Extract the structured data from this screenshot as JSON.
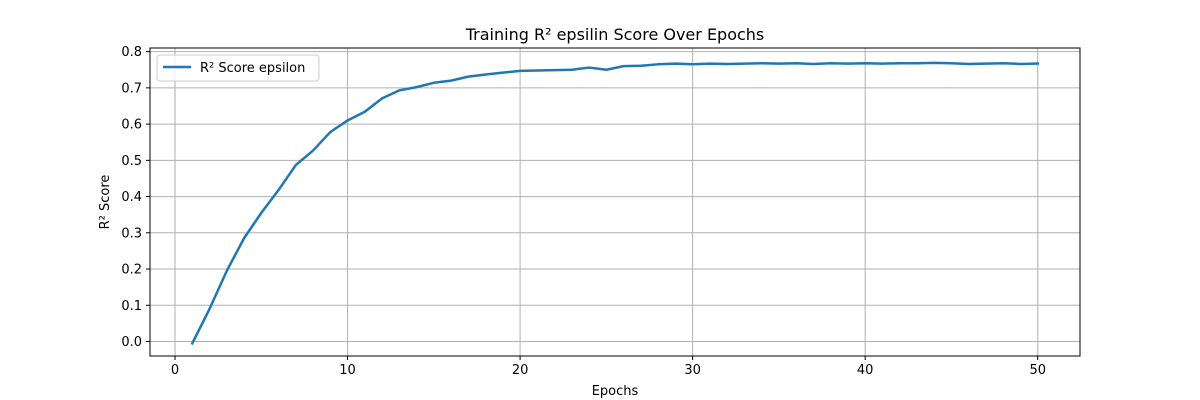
{
  "chart_data": {
    "type": "line",
    "title": "Training R² epsilin Score Over Epochs",
    "xlabel": "Epochs",
    "ylabel": "R² Score",
    "xlim": [
      -1.45,
      52.45
    ],
    "ylim": [
      -0.04,
      0.81
    ],
    "xticks": [
      0,
      10,
      20,
      30,
      40,
      50
    ],
    "yticks": [
      0.0,
      0.1,
      0.2,
      0.3,
      0.4,
      0.5,
      0.6,
      0.7,
      0.8
    ],
    "xtick_labels": [
      "0",
      "10",
      "20",
      "30",
      "40",
      "50"
    ],
    "ytick_labels": [
      "0.0",
      "0.1",
      "0.2",
      "0.3",
      "0.4",
      "0.5",
      "0.6",
      "0.7",
      "0.8"
    ],
    "grid": true,
    "legend_position": "top-left",
    "series": [
      {
        "name": "R² Score epsilon",
        "color": "#1f77b4",
        "x": [
          1,
          2,
          3,
          4,
          5,
          6,
          7,
          8,
          9,
          10,
          11,
          12,
          13,
          14,
          15,
          16,
          17,
          18,
          19,
          20,
          21,
          22,
          23,
          24,
          25,
          26,
          27,
          28,
          29,
          30,
          31,
          32,
          33,
          34,
          35,
          36,
          37,
          38,
          39,
          40,
          41,
          42,
          43,
          44,
          45,
          46,
          47,
          48,
          49,
          50
        ],
        "y": [
          -0.005,
          0.09,
          0.195,
          0.285,
          0.355,
          0.418,
          0.487,
          0.527,
          0.578,
          0.61,
          0.634,
          0.671,
          0.693,
          0.702,
          0.714,
          0.72,
          0.731,
          0.737,
          0.742,
          0.747,
          0.748,
          0.749,
          0.75,
          0.756,
          0.75,
          0.76,
          0.761,
          0.765,
          0.767,
          0.765,
          0.767,
          0.766,
          0.767,
          0.768,
          0.767,
          0.768,
          0.766,
          0.768,
          0.767,
          0.768,
          0.767,
          0.768,
          0.768,
          0.769,
          0.768,
          0.766,
          0.767,
          0.768,
          0.766,
          0.767
        ]
      }
    ]
  }
}
